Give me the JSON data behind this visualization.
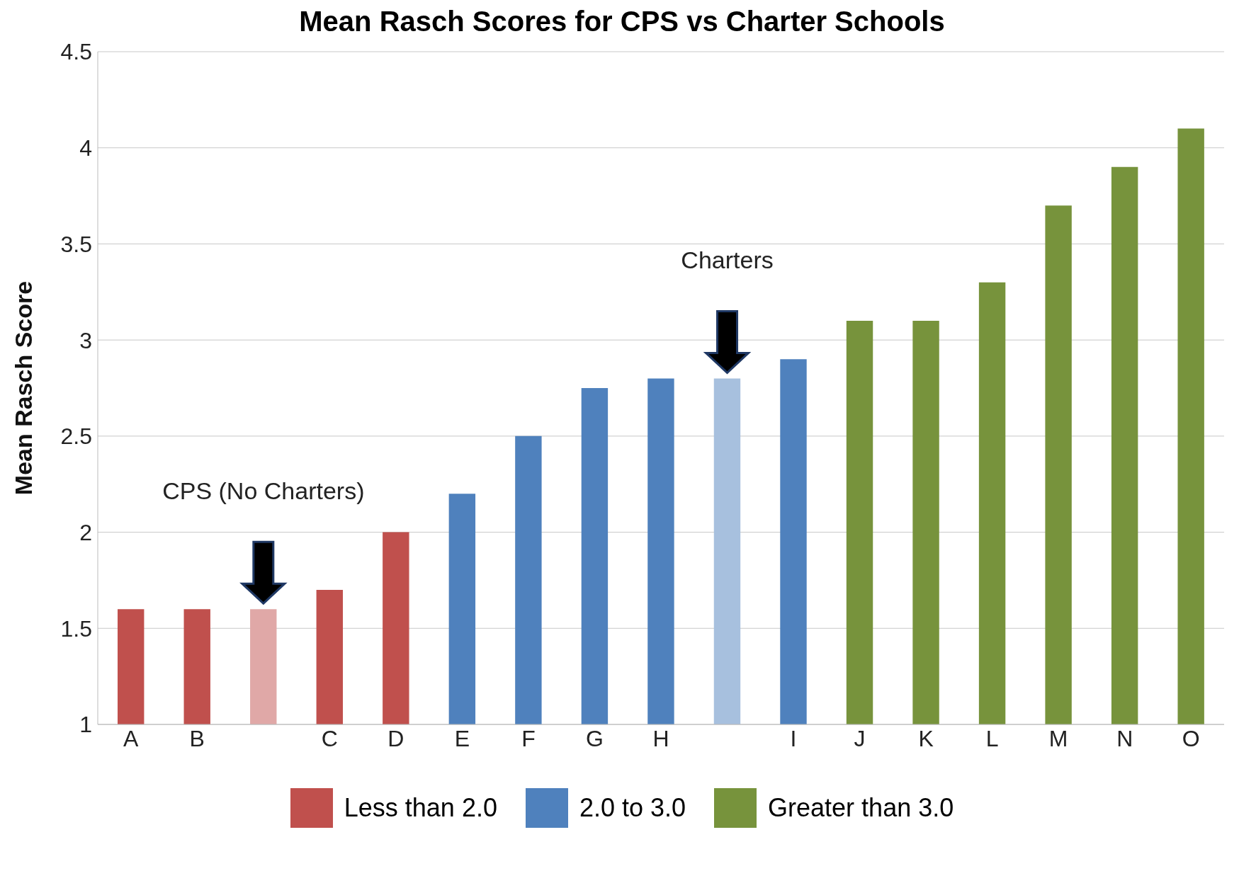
{
  "chart_data": {
    "type": "bar",
    "title": "Mean Rasch Scores for CPS vs Charter Schools",
    "ylabel": "Mean Rasch Score",
    "categories": [
      "A",
      "B",
      null,
      "C",
      "D",
      "E",
      "F",
      "G",
      "H",
      null,
      "I",
      "J",
      "K",
      "L",
      "M",
      "N",
      "O"
    ],
    "stacked": true,
    "series": [
      {
        "name": "Less than 2.0",
        "color": "#c0504d",
        "colors": [
          "#c0504d",
          "#c0504d",
          "#e0a8a7",
          "#c0504d",
          "#c0504d",
          null,
          null,
          null,
          null,
          null,
          null,
          null,
          null,
          null,
          null,
          null,
          null
        ],
        "values": [
          1.6,
          1.6,
          1.6,
          1.7,
          2.0,
          null,
          null,
          null,
          null,
          null,
          null,
          null,
          null,
          null,
          null,
          null,
          null
        ]
      },
      {
        "name": "2.0 to 3.0",
        "color": "#4f81bd",
        "colors": [
          null,
          null,
          null,
          null,
          null,
          "#4f81bd",
          "#4f81bd",
          "#4f81bd",
          "#4f81bd",
          "#a7c0de",
          "#4f81bd",
          null,
          null,
          null,
          null,
          null,
          null
        ],
        "values": [
          null,
          null,
          null,
          null,
          null,
          2.2,
          2.5,
          2.75,
          2.8,
          2.8,
          2.9,
          null,
          null,
          null,
          null,
          null,
          null
        ]
      },
      {
        "name": "Greater than 3.0",
        "color": "#77933c",
        "colors": [
          null,
          null,
          null,
          null,
          null,
          null,
          null,
          null,
          null,
          null,
          null,
          "#77933c",
          "#77933c",
          "#77933c",
          "#77933c",
          "#77933c",
          "#77933c"
        ],
        "values": [
          null,
          null,
          null,
          null,
          null,
          null,
          null,
          null,
          null,
          null,
          null,
          3.1,
          3.1,
          3.3,
          3.7,
          3.9,
          4.1
        ]
      }
    ],
    "ylim": [
      1,
      4.5
    ],
    "yticks": [
      1,
      1.5,
      2,
      2.5,
      3,
      3.5,
      4,
      4.5
    ],
    "grid": "y",
    "legend": "bottom",
    "annotations": [
      "CPS (No Charters)",
      "Charters"
    ]
  }
}
